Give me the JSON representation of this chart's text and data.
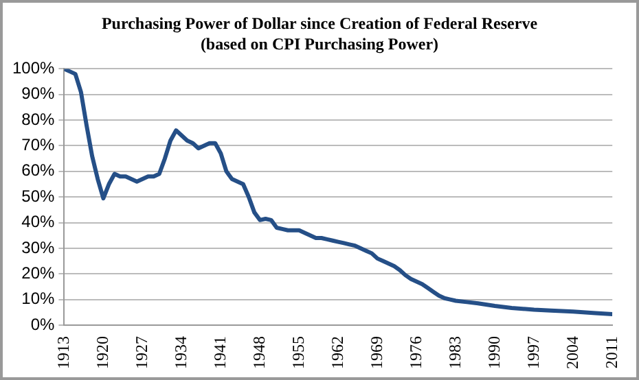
{
  "chart_data": {
    "type": "line",
    "title": "Purchasing Power of Dollar since Creation of Federal Reserve",
    "subtitle": "(based on CPI Purchasing Power)",
    "x": [
      1913,
      1914,
      1915,
      1916,
      1917,
      1918,
      1919,
      1920,
      1921,
      1922,
      1923,
      1924,
      1925,
      1926,
      1927,
      1928,
      1929,
      1930,
      1931,
      1932,
      1933,
      1934,
      1935,
      1936,
      1937,
      1938,
      1939,
      1940,
      1941,
      1942,
      1943,
      1944,
      1945,
      1946,
      1947,
      1948,
      1949,
      1950,
      1951,
      1952,
      1953,
      1954,
      1955,
      1956,
      1957,
      1958,
      1959,
      1960,
      1961,
      1962,
      1963,
      1964,
      1965,
      1966,
      1967,
      1968,
      1969,
      1970,
      1971,
      1972,
      1973,
      1974,
      1975,
      1976,
      1977,
      1978,
      1979,
      1980,
      1981,
      1982,
      1983,
      1985,
      1987,
      1990,
      1993,
      1997,
      2000,
      2004,
      2008,
      2011
    ],
    "series": [
      {
        "color": "#254f87",
        "values": [
          100,
          99,
          98,
          91,
          78,
          66,
          57,
          49.5,
          55,
          59,
          58,
          58,
          57,
          56,
          57,
          58,
          58,
          59,
          65,
          72,
          76,
          74,
          72,
          71,
          69,
          70,
          71,
          71,
          67,
          60,
          57,
          56,
          55,
          50,
          44,
          41,
          41.5,
          41,
          38,
          37.5,
          37,
          37,
          37,
          36,
          35,
          34,
          34,
          33.5,
          33,
          32.5,
          32,
          31.5,
          31,
          30,
          29,
          28,
          26,
          25,
          24,
          23,
          21.5,
          19.5,
          18,
          17,
          16,
          14.5,
          13,
          11.5,
          10.5,
          10,
          9.5,
          9,
          8.5,
          7.5,
          6.7,
          6,
          5.7,
          5.3,
          4.7,
          4.3
        ]
      }
    ],
    "xlim": [
      1913,
      2011
    ],
    "xticks": [
      1913,
      1920,
      1927,
      1934,
      1941,
      1948,
      1955,
      1962,
      1969,
      1976,
      1983,
      1990,
      1997,
      2004,
      2011
    ],
    "ylim": [
      0,
      100
    ],
    "yticks": [
      {
        "value": 0,
        "label": "0%"
      },
      {
        "value": 10,
        "label": "10%"
      },
      {
        "value": 20,
        "label": "20%"
      },
      {
        "value": 30,
        "label": "30%"
      },
      {
        "value": 40,
        "label": "40%"
      },
      {
        "value": 50,
        "label": "50%"
      },
      {
        "value": 60,
        "label": "60%"
      },
      {
        "value": 70,
        "label": "70%"
      },
      {
        "value": 80,
        "label": "80%"
      },
      {
        "value": 90,
        "label": "90%"
      },
      {
        "value": 100,
        "label": "100%"
      }
    ],
    "grid": "y",
    "legend": false,
    "marker": "none",
    "line_style": "solid"
  }
}
